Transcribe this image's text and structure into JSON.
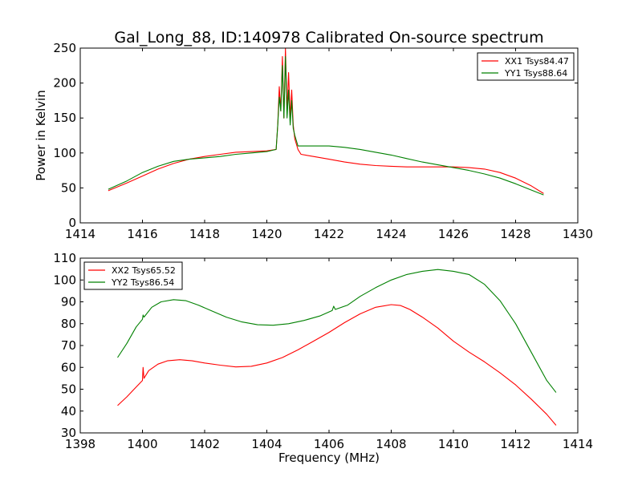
{
  "chart_data": [
    {
      "type": "line",
      "title": "Gal_Long_88, ID:140978 Calibrated On-source spectrum",
      "xlabel": "",
      "ylabel": "Power in Kelvin",
      "xlim": [
        1414,
        1430
      ],
      "ylim": [
        0,
        250
      ],
      "xticks": [
        1414,
        1416,
        1418,
        1420,
        1422,
        1424,
        1426,
        1428,
        1430
      ],
      "yticks": [
        0,
        50,
        100,
        150,
        200,
        250
      ],
      "grid": false,
      "legend_position": "top-right",
      "series": [
        {
          "name": "XX1 Tsys84.47",
          "color": "#ff0000",
          "x": [
            1414.9,
            1415.5,
            1416.0,
            1416.5,
            1417.0,
            1417.5,
            1418.0,
            1418.5,
            1419.0,
            1419.5,
            1420.0,
            1420.3,
            1420.35,
            1420.4,
            1420.45,
            1420.5,
            1420.55,
            1420.6,
            1420.65,
            1420.7,
            1420.75,
            1420.8,
            1420.85,
            1420.9,
            1421.0,
            1421.1,
            1421.5,
            1422.0,
            1422.5,
            1423.0,
            1423.5,
            1424.0,
            1424.5,
            1425.0,
            1425.5,
            1426.0,
            1426.5,
            1427.0,
            1427.5,
            1428.0,
            1428.5,
            1428.9
          ],
          "y": [
            46,
            57,
            67,
            77,
            85,
            91,
            95,
            98,
            101,
            102,
            103,
            105,
            140,
            195,
            160,
            238,
            150,
            250,
            160,
            215,
            150,
            190,
            140,
            120,
            105,
            98,
            95,
            91,
            87,
            84,
            82,
            81,
            80,
            80,
            80,
            80,
            79,
            77,
            72,
            64,
            53,
            42
          ]
        },
        {
          "name": "YY1 Tsys88.64",
          "color": "#008000",
          "x": [
            1414.9,
            1415.5,
            1416.0,
            1416.5,
            1417.0,
            1417.5,
            1418.0,
            1418.5,
            1419.0,
            1419.5,
            1420.0,
            1420.3,
            1420.35,
            1420.4,
            1420.45,
            1420.5,
            1420.55,
            1420.6,
            1420.65,
            1420.7,
            1420.75,
            1420.8,
            1420.85,
            1420.9,
            1421.0,
            1421.5,
            1422.0,
            1422.5,
            1423.0,
            1423.5,
            1424.0,
            1424.5,
            1425.0,
            1425.5,
            1426.0,
            1426.5,
            1427.0,
            1427.5,
            1428.0,
            1428.5,
            1428.9
          ],
          "y": [
            48,
            60,
            72,
            81,
            88,
            91,
            93,
            95,
            98,
            100,
            102,
            105,
            140,
            180,
            160,
            225,
            150,
            238,
            150,
            190,
            140,
            175,
            135,
            125,
            110,
            110,
            110,
            108,
            105,
            101,
            97,
            92,
            87,
            83,
            79,
            75,
            70,
            64,
            56,
            47,
            40
          ]
        }
      ]
    },
    {
      "type": "line",
      "title": "",
      "xlabel": "Frequency (MHz)",
      "ylabel": "",
      "xlim": [
        1398,
        1414
      ],
      "ylim": [
        30,
        110
      ],
      "xticks": [
        1398,
        1400,
        1402,
        1404,
        1406,
        1408,
        1410,
        1412,
        1414
      ],
      "yticks": [
        30,
        40,
        50,
        60,
        70,
        80,
        90,
        100,
        110
      ],
      "grid": false,
      "legend_position": "top-left",
      "series": [
        {
          "name": "XX2 Tsys65.52",
          "color": "#ff0000",
          "x": [
            1399.2,
            1399.5,
            1399.8,
            1400.0,
            1400.02,
            1400.05,
            1400.2,
            1400.5,
            1400.8,
            1401.2,
            1401.6,
            1402.0,
            1402.5,
            1403.0,
            1403.5,
            1404.0,
            1404.5,
            1405.0,
            1405.5,
            1406.0,
            1406.5,
            1407.0,
            1407.5,
            1408.0,
            1408.3,
            1408.6,
            1409.0,
            1409.5,
            1410.0,
            1410.5,
            1411.0,
            1411.5,
            1412.0,
            1412.5,
            1413.0,
            1413.3
          ],
          "y": [
            42.5,
            46.5,
            51,
            54,
            60,
            55,
            58.5,
            61.5,
            63,
            63.5,
            63,
            62,
            61,
            60.2,
            60.5,
            62,
            64.5,
            68,
            72,
            76,
            80.5,
            84.5,
            87.5,
            88.7,
            88.3,
            86.5,
            83,
            78,
            72,
            67,
            62.5,
            57.5,
            52,
            45.5,
            38.5,
            33.5
          ]
        },
        {
          "name": "YY2 Tsys86.54",
          "color": "#008000",
          "x": [
            1399.2,
            1399.5,
            1399.8,
            1400.0,
            1400.02,
            1400.05,
            1400.3,
            1400.6,
            1401.0,
            1401.4,
            1401.8,
            1402.2,
            1402.7,
            1403.2,
            1403.7,
            1404.2,
            1404.7,
            1405.2,
            1405.7,
            1406.1,
            1406.15,
            1406.2,
            1406.6,
            1407.0,
            1407.5,
            1408.0,
            1408.5,
            1409.0,
            1409.5,
            1410.0,
            1410.5,
            1411.0,
            1411.5,
            1412.0,
            1412.5,
            1413.0,
            1413.3
          ],
          "y": [
            64.5,
            71,
            78.5,
            82,
            84,
            83,
            87.5,
            90,
            91,
            90.5,
            88.5,
            86,
            83,
            80.8,
            79.5,
            79.3,
            80,
            81.5,
            83.5,
            86,
            88,
            86.5,
            88.5,
            92.5,
            96.5,
            100,
            102.5,
            104,
            104.8,
            104,
            102.5,
            98,
            90.5,
            80,
            67,
            54,
            48.5
          ]
        }
      ]
    }
  ]
}
